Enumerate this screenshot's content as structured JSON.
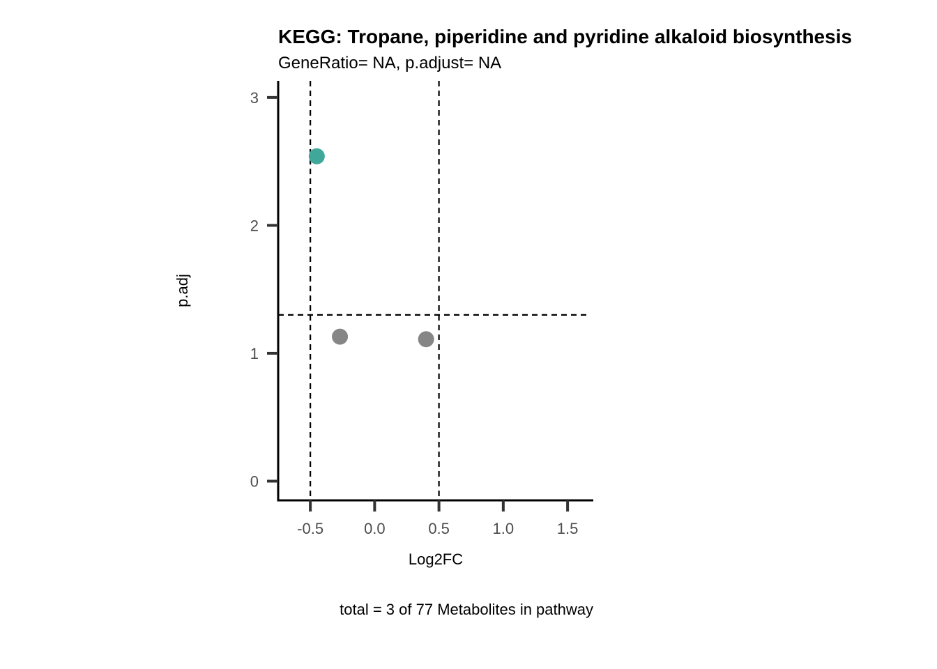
{
  "chart_data": {
    "type": "scatter",
    "title": "KEGG: Tropane, piperidine and pyridine alkaloid biosynthesis",
    "subtitle": "GeneRatio= NA, p.adjust= NA",
    "xlabel": "Log2FC",
    "ylabel": "p.adj",
    "caption": "total = 3 of 77 Metabolites in pathway",
    "xlim": [
      -0.75,
      1.7
    ],
    "ylim": [
      -0.15,
      3.13
    ],
    "x_ticks": [
      -0.5,
      0.0,
      0.5,
      1.0,
      1.5
    ],
    "x_tick_labels": [
      "-0.5",
      "0.0",
      "0.5",
      "1.0",
      "1.5"
    ],
    "y_ticks": [
      0,
      1,
      2,
      3
    ],
    "y_tick_labels": [
      "0",
      "1",
      "2",
      "3"
    ],
    "reference_lines": {
      "vertical": [
        -0.5,
        0.5
      ],
      "horizontal": [
        1.3
      ],
      "style": "dashed"
    },
    "grid": false,
    "points": [
      {
        "x": -0.45,
        "y": 2.54,
        "color": "#3fa89b"
      },
      {
        "x": -0.27,
        "y": 1.13,
        "color": "#868686"
      },
      {
        "x": 0.4,
        "y": 1.11,
        "color": "#868686"
      }
    ]
  }
}
